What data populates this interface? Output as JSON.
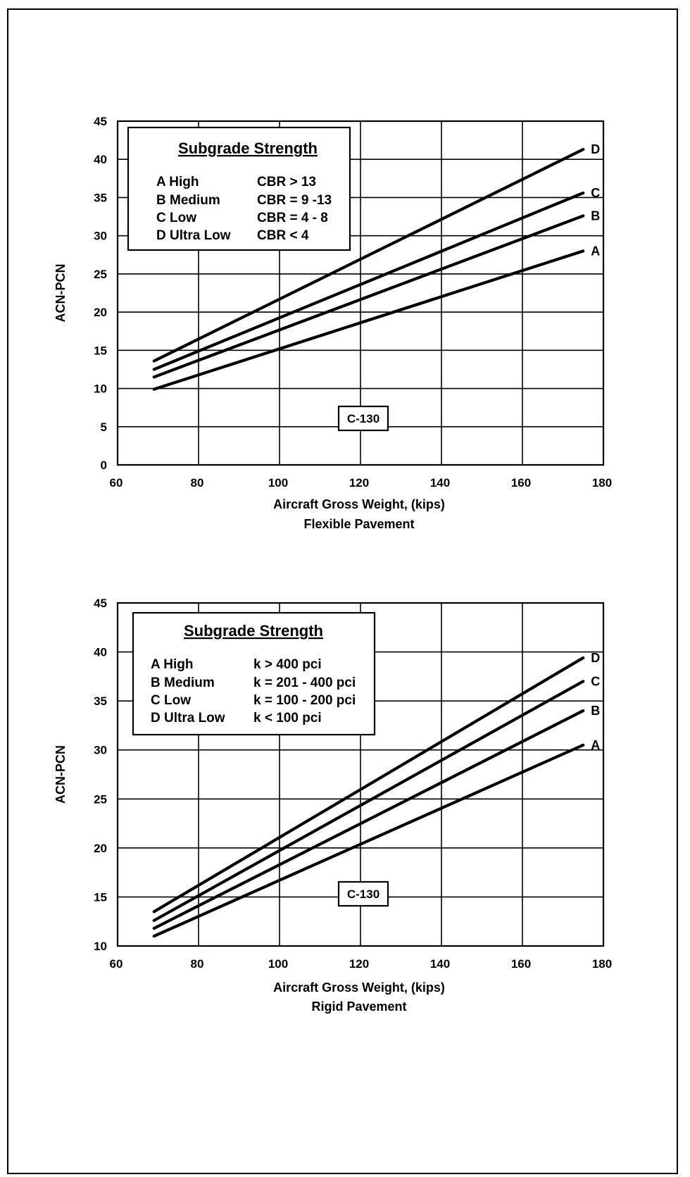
{
  "chart_data": [
    {
      "type": "line",
      "xlabel": "Aircraft Gross Weight, (kips)",
      "subtitle": "Flexible Pavement",
      "ylabel": "ACN-PCN",
      "xlim": [
        60,
        180
      ],
      "ylim": [
        0,
        45
      ],
      "x_ticks": [
        "60",
        "80",
        "100",
        "120",
        "140",
        "160",
        "180"
      ],
      "y_ticks": [
        "0",
        "5",
        "10",
        "15",
        "20",
        "25",
        "30",
        "35",
        "40",
        "45"
      ],
      "grid": true,
      "tag": "C-130",
      "legend": {
        "title": "Subgrade Strength",
        "entries": [
          {
            "class": "A High",
            "criterion": "CBR > 13"
          },
          {
            "class": "B Medium",
            "criterion": "CBR = 9 -13"
          },
          {
            "class": "C Low",
            "criterion": "CBR = 4 - 8"
          },
          {
            "class": "D Ultra Low",
            "criterion": "CBR < 4"
          }
        ]
      },
      "series": [
        {
          "name": "A",
          "x": [
            69,
            175
          ],
          "y": [
            9.9,
            28.0
          ]
        },
        {
          "name": "B",
          "x": [
            69,
            175
          ],
          "y": [
            11.5,
            32.6
          ]
        },
        {
          "name": "C",
          "x": [
            69,
            175
          ],
          "y": [
            12.5,
            35.6
          ]
        },
        {
          "name": "D",
          "x": [
            69,
            175
          ],
          "y": [
            13.6,
            41.3
          ]
        }
      ]
    },
    {
      "type": "line",
      "xlabel": "Aircraft Gross Weight, (kips)",
      "subtitle": "Rigid Pavement",
      "ylabel": "ACN-PCN",
      "xlim": [
        60,
        180
      ],
      "ylim": [
        10,
        45
      ],
      "x_ticks": [
        "60",
        "80",
        "100",
        "120",
        "140",
        "160",
        "180"
      ],
      "y_ticks": [
        "10",
        "15",
        "20",
        "25",
        "30",
        "35",
        "40",
        "45"
      ],
      "grid": true,
      "tag": "C-130",
      "legend": {
        "title": "Subgrade Strength",
        "entries": [
          {
            "class": "A High",
            "criterion": "k > 400 pci"
          },
          {
            "class": "B Medium",
            "criterion": "k = 201 - 400 pci"
          },
          {
            "class": "C Low",
            "criterion": "k = 100 - 200 pci"
          },
          {
            "class": "D Ultra Low",
            "criterion": "k < 100 pci"
          }
        ]
      },
      "series": [
        {
          "name": "A",
          "x": [
            69,
            175
          ],
          "y": [
            11.0,
            30.5
          ]
        },
        {
          "name": "B",
          "x": [
            69,
            175
          ],
          "y": [
            11.8,
            34.0
          ]
        },
        {
          "name": "C",
          "x": [
            69,
            175
          ],
          "y": [
            12.6,
            37.0
          ]
        },
        {
          "name": "D",
          "x": [
            69,
            175
          ],
          "y": [
            13.5,
            39.4
          ]
        }
      ]
    }
  ]
}
